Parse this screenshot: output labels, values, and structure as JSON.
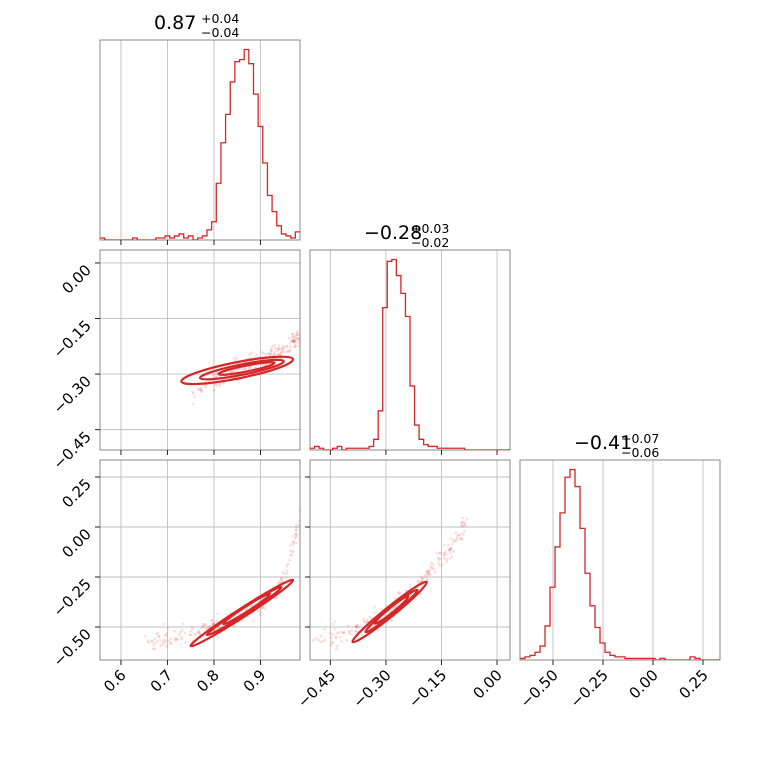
{
  "chart_data": {
    "type": "corner",
    "color": "#d62728",
    "parameters": [
      {
        "name": "",
        "median": 0.87,
        "plus": "+0.04",
        "minus": "−0.04",
        "title_median": "0.87"
      },
      {
        "name": "",
        "median": -0.28,
        "plus": "+0.03",
        "minus": "−0.02",
        "title_median": "−0.28"
      },
      {
        "name": "",
        "median": -0.41,
        "plus": "+0.07",
        "minus": "−0.06",
        "title_median": "−0.41"
      }
    ],
    "ranges": [
      [
        0.555,
        0.985
      ],
      [
        -0.505,
        0.035
      ],
      [
        -0.665,
        0.335
      ]
    ],
    "ticks": {
      "p0": {
        "values": [
          0.6,
          0.7,
          0.8,
          0.9
        ],
        "labels": [
          "0.6",
          "0.7",
          "0.8",
          "0.9"
        ]
      },
      "p1": {
        "values": [
          -0.45,
          -0.3,
          -0.15,
          0.0
        ],
        "labels": [
          "−0.45",
          "−0.30",
          "−0.15",
          "0.00"
        ]
      },
      "p2": {
        "values": [
          -0.5,
          -0.25,
          0.0,
          0.25
        ],
        "labels": [
          "−0.50",
          "−0.25",
          "0.00",
          "0.25"
        ]
      }
    },
    "histograms": [
      {
        "param": 0,
        "bin_edges": [
          0.555,
          0.985
        ],
        "counts": [
          1,
          0,
          0,
          0,
          0,
          0,
          0,
          1,
          0,
          0,
          0,
          0,
          1,
          1,
          2,
          1,
          2,
          3,
          1,
          2,
          0,
          1,
          2,
          5,
          9,
          28,
          48,
          62,
          78,
          88,
          89,
          94,
          87,
          72,
          56,
          38,
          22,
          14,
          7,
          3,
          2,
          1,
          4
        ]
      },
      {
        "param": 1,
        "bin_edges": [
          -0.505,
          0.035
        ],
        "counts": [
          1,
          2,
          1,
          0,
          0,
          1,
          2,
          0,
          1,
          1,
          1,
          1,
          1,
          2,
          6,
          22,
          80,
          106,
          107,
          98,
          88,
          75,
          36,
          14,
          6,
          3,
          2,
          2,
          1,
          1,
          1,
          1,
          1,
          1,
          0,
          0,
          0,
          0,
          0,
          0,
          0,
          0,
          0,
          0
        ]
      },
      {
        "param": 2,
        "bin_edges": [
          -0.665,
          0.335
        ],
        "counts": [
          1,
          2,
          3,
          5,
          9,
          22,
          47,
          73,
          95,
          118,
          123,
          112,
          85,
          56,
          35,
          21,
          11,
          5,
          3,
          2,
          2,
          1,
          1,
          1,
          1,
          1,
          1,
          0,
          1,
          0,
          0,
          0,
          0,
          0,
          2,
          1,
          0,
          0,
          0,
          0
        ]
      }
    ],
    "pairs": [
      {
        "x_param": 0,
        "y_param": 1,
        "trend_x": [
          0.75,
          0.8,
          0.85,
          0.9,
          0.95,
          0.985
        ],
        "trend_y": [
          -0.36,
          -0.32,
          -0.29,
          -0.265,
          -0.235,
          -0.2
        ],
        "contours": [
          {
            "cx": 0.87,
            "cy": -0.285,
            "major": 0.06,
            "minor": 0.008,
            "angle_data": 0.25
          },
          {
            "cx": 0.86,
            "cy": -0.288,
            "major": 0.09,
            "minor": 0.014,
            "angle_data": 0.25
          },
          {
            "cx": 0.85,
            "cy": -0.29,
            "major": 0.12,
            "minor": 0.022,
            "angle_data": 0.25
          }
        ]
      },
      {
        "x_param": 0,
        "y_param": 2,
        "trend_x": [
          0.65,
          0.75,
          0.8,
          0.85,
          0.9,
          0.95,
          0.985
        ],
        "trend_y": [
          -0.58,
          -0.54,
          -0.5,
          -0.45,
          -0.39,
          -0.27,
          0.05
        ],
        "contours": [
          {
            "cx": 0.87,
            "cy": -0.41,
            "major": 0.05,
            "minor": 0.01,
            "angle_data": 1.5
          },
          {
            "cx": 0.865,
            "cy": -0.42,
            "major": 0.08,
            "minor": 0.016,
            "angle_data": 1.5
          },
          {
            "cx": 0.86,
            "cy": -0.43,
            "major": 0.11,
            "minor": 0.022,
            "angle_data": 1.5
          }
        ]
      },
      {
        "x_param": 1,
        "y_param": 2,
        "trend_x": [
          -0.5,
          -0.4,
          -0.32,
          -0.28,
          -0.24,
          -0.2,
          -0.12,
          -0.08
        ],
        "trend_y": [
          -0.57,
          -0.53,
          -0.47,
          -0.41,
          -0.35,
          -0.27,
          -0.1,
          0.05
        ],
        "contours": [
          {
            "cx": -0.285,
            "cy": -0.415,
            "major": 0.045,
            "minor": 0.01,
            "angle_data": 1.5
          },
          {
            "cx": -0.285,
            "cy": -0.42,
            "major": 0.07,
            "minor": 0.016,
            "angle_data": 1.5
          },
          {
            "cx": -0.29,
            "cy": -0.425,
            "major": 0.1,
            "minor": 0.024,
            "angle_data": 1.5
          }
        ]
      }
    ],
    "grid": true,
    "legend": "none"
  }
}
